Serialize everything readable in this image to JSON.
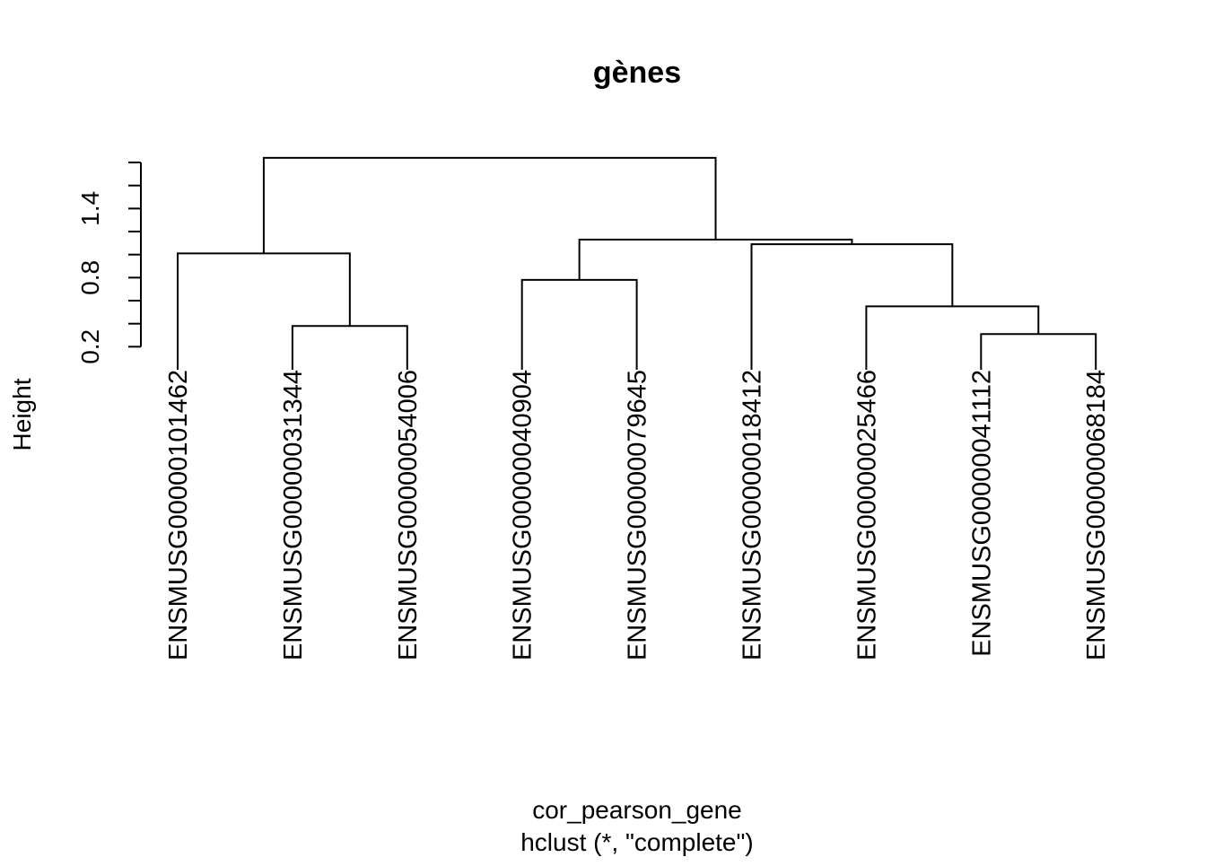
{
  "chart_data": {
    "type": "dendrogram",
    "title": "gènes",
    "xlabel": "cor_pearson_gene",
    "subtitle": "hclust (*, \"complete\")",
    "ylabel": "Height",
    "ylim": [
      0.0,
      1.8
    ],
    "y_ticks": [
      0.2,
      0.4,
      0.6,
      0.8,
      1.0,
      1.2,
      1.4,
      1.6,
      1.8
    ],
    "y_tick_labels": [
      {
        "value": 0.2,
        "label": "0.2"
      },
      {
        "value": 0.8,
        "label": "0.8"
      },
      {
        "value": 1.4,
        "label": "1.4"
      }
    ],
    "leaves": [
      "ENSMUSG00000101462",
      "ENSMUSG00000031344",
      "ENSMUSG00000054006",
      "ENSMUSG00000040904",
      "ENSMUSG00000079645",
      "ENSMUSG00000018412",
      "ENSMUSG00000025466",
      "ENSMUSG00000041112",
      "ENSMUSG00000068184"
    ],
    "leaf_height": 0.0,
    "merges": [
      {
        "left": 7,
        "right": 8,
        "height": 0.31
      },
      {
        "left": 1,
        "right": 2,
        "height": 0.38
      },
      {
        "left": 6,
        "right": "m0",
        "height": 0.55
      },
      {
        "left": 3,
        "right": 4,
        "height": 0.78
      },
      {
        "left": 0,
        "right": "m1",
        "height": 1.01
      },
      {
        "left": 5,
        "right": "m2",
        "height": 1.09
      },
      {
        "left": "m3",
        "right": "m5",
        "height": 1.13
      },
      {
        "left": "m4",
        "right": "m6",
        "height": 1.84
      }
    ]
  }
}
